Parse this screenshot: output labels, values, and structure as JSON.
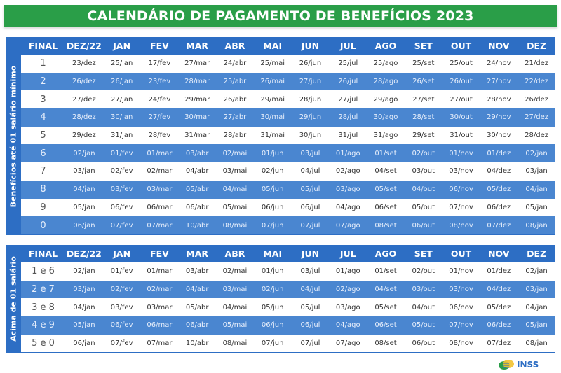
{
  "title": "CALENDÁRIO DE PAGAMENTO DE BENEFÍCIOS 2023",
  "colors": {
    "title_green": "#2a9e48",
    "header_blue": "#2d6ec4",
    "row_blue": "#4a86d0"
  },
  "columns": [
    "FINAL",
    "DEZ/22",
    "JAN",
    "FEV",
    "MAR",
    "ABR",
    "MAI",
    "JUN",
    "JUL",
    "AGO",
    "SET",
    "OUT",
    "NOV",
    "DEZ"
  ],
  "table1": {
    "side_label": "Benefícios até 01 salário mínimo",
    "rows": [
      [
        "1",
        "23/dez",
        "25/jan",
        "17/fev",
        "27/mar",
        "24/abr",
        "25/mai",
        "26/jun",
        "25/jul",
        "25/ago",
        "25/set",
        "25/out",
        "24/nov",
        "21/dez"
      ],
      [
        "2",
        "26/dez",
        "26/jan",
        "23/fev",
        "28/mar",
        "25/abr",
        "26/mai",
        "27/jun",
        "26/jul",
        "28/ago",
        "26/set",
        "26/out",
        "27/nov",
        "22/dez"
      ],
      [
        "3",
        "27/dez",
        "27/jan",
        "24/fev",
        "29/mar",
        "26/abr",
        "29/mai",
        "28/jun",
        "27/jul",
        "29/ago",
        "27/set",
        "27/out",
        "28/nov",
        "26/dez"
      ],
      [
        "4",
        "28/dez",
        "30/jan",
        "27/fev",
        "30/mar",
        "27/abr",
        "30/mai",
        "29/jun",
        "28/jul",
        "30/ago",
        "28/set",
        "30/out",
        "29/nov",
        "27/dez"
      ],
      [
        "5",
        "29/dez",
        "31/jan",
        "28/fev",
        "31/mar",
        "28/abr",
        "31/mai",
        "30/jun",
        "31/jul",
        "31/ago",
        "29/set",
        "31/out",
        "30/nov",
        "28/dez"
      ],
      [
        "6",
        "02/jan",
        "01/fev",
        "01/mar",
        "03/abr",
        "02/mai",
        "01/jun",
        "03/jul",
        "01/ago",
        "01/set",
        "02/out",
        "01/nov",
        "01/dez",
        "02/jan"
      ],
      [
        "7",
        "03/jan",
        "02/fev",
        "02/mar",
        "04/abr",
        "03/mai",
        "02/jun",
        "04/jul",
        "02/ago",
        "04/set",
        "03/out",
        "03/nov",
        "04/dez",
        "03/jan"
      ],
      [
        "8",
        "04/jan",
        "03/fev",
        "03/mar",
        "05/abr",
        "04/mai",
        "05/jun",
        "05/jul",
        "03/ago",
        "05/set",
        "04/out",
        "06/nov",
        "05/dez",
        "04/jan"
      ],
      [
        "9",
        "05/jan",
        "06/fev",
        "06/mar",
        "06/abr",
        "05/mai",
        "06/jun",
        "06/jul",
        "04/ago",
        "06/set",
        "05/out",
        "07/nov",
        "06/dez",
        "05/jan"
      ],
      [
        "0",
        "06/jan",
        "07/fev",
        "07/mar",
        "10/abr",
        "08/mai",
        "07/jun",
        "07/jul",
        "07/ago",
        "08/set",
        "06/out",
        "08/nov",
        "07/dez",
        "08/jan"
      ]
    ]
  },
  "table2": {
    "side_label": "Acima de 01 salário",
    "rows": [
      [
        "1 e 6",
        "02/jan",
        "01/fev",
        "01/mar",
        "03/abr",
        "02/mai",
        "01/jun",
        "03/jul",
        "01/ago",
        "01/set",
        "02/out",
        "01/nov",
        "01/dez",
        "02/jan"
      ],
      [
        "2 e 7",
        "03/jan",
        "02/fev",
        "02/mar",
        "04/abr",
        "03/mai",
        "02/jun",
        "04/jul",
        "02/ago",
        "04/set",
        "03/out",
        "03/nov",
        "04/dez",
        "03/jan"
      ],
      [
        "3 e 8",
        "04/jan",
        "03/fev",
        "03/mar",
        "05/abr",
        "04/mai",
        "05/jun",
        "05/jul",
        "03/ago",
        "05/set",
        "04/out",
        "06/nov",
        "05/dez",
        "04/jan"
      ],
      [
        "4 e 9",
        "05/jan",
        "06/fev",
        "06/mar",
        "06/abr",
        "05/mai",
        "06/jun",
        "06/jul",
        "04/ago",
        "06/set",
        "05/out",
        "07/nov",
        "06/dez",
        "05/jan"
      ],
      [
        "5 e 0",
        "06/jan",
        "07/fev",
        "07/mar",
        "10/abr",
        "08/mai",
        "07/jun",
        "07/jul",
        "07/ago",
        "08/set",
        "06/out",
        "08/nov",
        "07/dez",
        "08/jan"
      ]
    ]
  },
  "logo": {
    "text": "INSS",
    "icon": "inss-logo-icon"
  }
}
